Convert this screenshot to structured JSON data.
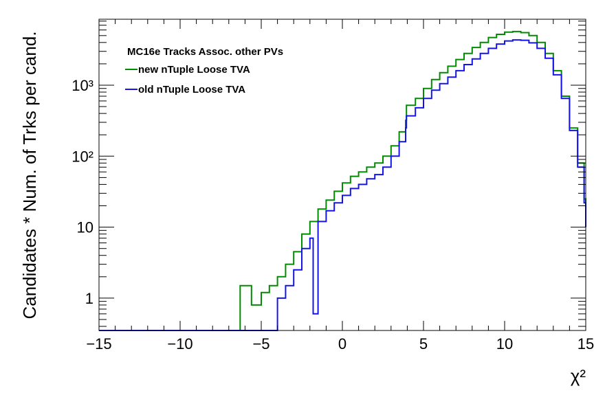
{
  "chart_data": {
    "type": "line",
    "style": "step-histogram",
    "legend": {
      "header": "MC16e Tracks Assoc. other PVs",
      "placement": "top-left"
    },
    "xlabel": "χ²",
    "ylabel": "Candidates * Num. of Trks per cand.",
    "xlim": [
      -15,
      15
    ],
    "ylim": [
      0.35,
      8500
    ],
    "yscale": "log",
    "grid": false,
    "x_ticks": [
      -15,
      -10,
      -5,
      0,
      5,
      10,
      15
    ],
    "x_tick_labels": [
      "−15",
      "−10",
      "−5",
      "0",
      "5",
      "10",
      "15"
    ],
    "y_ticks": [
      1,
      10,
      100,
      1000
    ],
    "y_tick_labels": [
      "1",
      "10",
      "10²",
      "10³"
    ],
    "series": [
      {
        "name": "new nTuple Loose TVA",
        "color": "#008c00",
        "x": [
          -6.3,
          -6.0,
          -5.6,
          -5.0,
          -4.5,
          -4.0,
          -3.5,
          -3.0,
          -2.5,
          -2.0,
          -1.5,
          -1.0,
          -0.5,
          0.0,
          0.5,
          1.0,
          1.5,
          2.0,
          2.5,
          3.0,
          3.5,
          3.9,
          3.95,
          4.5,
          5.0,
          5.5,
          6.0,
          6.5,
          7.0,
          7.5,
          8.0,
          8.5,
          9.0,
          9.5,
          10.0,
          10.5,
          11.0,
          11.5,
          12.0,
          12.5,
          13.0,
          13.5,
          14.0,
          14.5,
          14.9,
          15.0
        ],
        "values": [
          1.5,
          1.5,
          0.8,
          1.2,
          1.5,
          2.0,
          3.0,
          4.5,
          8.0,
          12.0,
          18.0,
          24.0,
          32.0,
          42.0,
          52.0,
          60.0,
          70.0,
          80.0,
          100.0,
          140.0,
          220.0,
          320.0,
          520.0,
          650.0,
          900.0,
          1200.0,
          1500.0,
          1850.0,
          2300.0,
          2800.0,
          3400.0,
          4000.0,
          4700.0,
          5200.0,
          5600.0,
          5700.0,
          5500.0,
          5000.0,
          4000.0,
          2800.0,
          1600.0,
          700.0,
          250.0,
          80.0,
          25.0,
          12.0
        ]
      },
      {
        "name": "old nTuple Loose TVA",
        "color": "#1414e6",
        "x": [
          -4.0,
          -3.5,
          -3.0,
          -2.5,
          -2.0,
          -1.8,
          -1.5,
          -1.0,
          -0.5,
          0.0,
          0.5,
          1.0,
          1.5,
          2.0,
          2.5,
          3.0,
          3.5,
          3.9,
          3.95,
          4.5,
          5.0,
          5.5,
          6.0,
          6.5,
          7.0,
          7.5,
          8.0,
          8.5,
          9.0,
          9.5,
          10.0,
          10.5,
          11.0,
          11.5,
          12.0,
          12.5,
          13.0,
          13.5,
          14.0,
          14.5,
          14.9,
          15.0
        ],
        "values": [
          1.0,
          1.5,
          2.5,
          5.0,
          7.0,
          0.6,
          12.0,
          17.0,
          22.0,
          28.0,
          35.0,
          40.0,
          48.0,
          55.0,
          70.0,
          100.0,
          160.0,
          250.0,
          370.0,
          480.0,
          650.0,
          850.0,
          1050.0,
          1300.0,
          1600.0,
          1950.0,
          2350.0,
          2800.0,
          3300.0,
          3800.0,
          4200.0,
          4350.0,
          4300.0,
          3950.0,
          3300.0,
          2400.0,
          1400.0,
          650.0,
          230.0,
          70.0,
          22.0,
          10.0
        ]
      }
    ]
  }
}
